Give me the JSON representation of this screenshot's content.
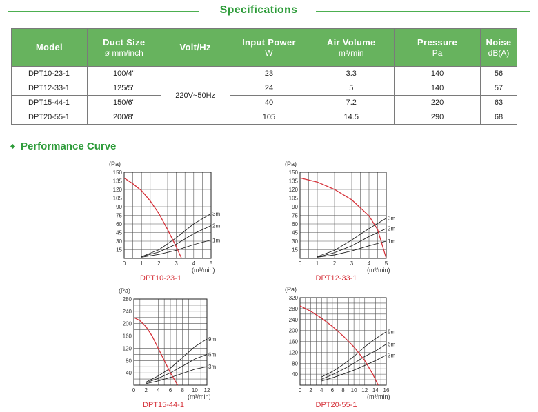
{
  "header": {
    "title": "Specifications"
  },
  "table": {
    "headers": [
      {
        "line1": "Model",
        "line2": ""
      },
      {
        "line1": "Duct Size",
        "line2": "ø mm/inch"
      },
      {
        "line1": "Volt/Hz",
        "line2": ""
      },
      {
        "line1": "Input Power",
        "line2": "W"
      },
      {
        "line1": "Air Volume",
        "line2": "m³/min"
      },
      {
        "line1": "Pressure",
        "line2": "Pa"
      },
      {
        "line1": "Noise",
        "line2": "dB(A)"
      }
    ],
    "volt": "220V~50Hz",
    "rows": [
      {
        "model": "DPT10-23-1",
        "duct": "100/4\"",
        "power": "23",
        "air": "3.3",
        "pressure": "140",
        "noise": "56"
      },
      {
        "model": "DPT12-33-1",
        "duct": "125/5\"",
        "power": "24",
        "air": "5",
        "pressure": "140",
        "noise": "57"
      },
      {
        "model": "DPT15-44-1",
        "duct": "150/6\"",
        "power": "40",
        "air": "7.2",
        "pressure": "220",
        "noise": "63"
      },
      {
        "model": "DPT20-55-1",
        "duct": "200/8\"",
        "power": "105",
        "air": "14.5",
        "pressure": "290",
        "noise": "68"
      }
    ]
  },
  "performance": {
    "title": "Performance Curve"
  },
  "chart_data": [
    {
      "type": "line",
      "title": "DPT10-23-1",
      "ylabel": "(Pa)",
      "xlabel": "(m³/min)",
      "xlim": [
        0,
        5
      ],
      "ylim": [
        0,
        150
      ],
      "xticks": [
        "0",
        "1",
        "2",
        "3",
        "4",
        "5"
      ],
      "yticks": [
        "15",
        "30",
        "45",
        "60",
        "75",
        "90",
        "105",
        "120",
        "135",
        "150"
      ],
      "fan_curve": [
        [
          0,
          140
        ],
        [
          0.5,
          130
        ],
        [
          1,
          118
        ],
        [
          1.5,
          100
        ],
        [
          2,
          78
        ],
        [
          2.5,
          50
        ],
        [
          3,
          20
        ],
        [
          3.3,
          0
        ]
      ],
      "duct_curves": [
        {
          "name": "3m",
          "points": [
            [
              1,
              3
            ],
            [
              2,
              15
            ],
            [
              3,
              36
            ],
            [
              4,
              60
            ],
            [
              5,
              78
            ]
          ]
        },
        {
          "name": "2m",
          "points": [
            [
              1,
              3
            ],
            [
              2,
              11
            ],
            [
              3,
              25
            ],
            [
              4,
              43
            ],
            [
              5,
              57
            ]
          ]
        },
        {
          "name": "1m",
          "points": [
            [
              1,
              2
            ],
            [
              2,
              7
            ],
            [
              3,
              14
            ],
            [
              4,
              24
            ],
            [
              5,
              32
            ]
          ]
        }
      ]
    },
    {
      "type": "line",
      "title": "DPT12-33-1",
      "ylabel": "(Pa)",
      "xlabel": "(m³/min)",
      "xlim": [
        0,
        5
      ],
      "ylim": [
        0,
        150
      ],
      "xticks": [
        "0",
        "1",
        "2",
        "3",
        "4",
        "5"
      ],
      "yticks": [
        "15",
        "30",
        "45",
        "60",
        "75",
        "90",
        "105",
        "120",
        "135",
        "150"
      ],
      "fan_curve": [
        [
          0,
          140
        ],
        [
          1,
          133
        ],
        [
          2,
          120
        ],
        [
          3,
          102
        ],
        [
          4,
          74
        ],
        [
          4.5,
          50
        ],
        [
          5,
          0
        ]
      ],
      "duct_curves": [
        {
          "name": "3m",
          "points": [
            [
              1,
              3
            ],
            [
              2,
              14
            ],
            [
              3,
              32
            ],
            [
              4,
              52
            ],
            [
              5,
              70
            ]
          ]
        },
        {
          "name": "2m",
          "points": [
            [
              1,
              2
            ],
            [
              2,
              10
            ],
            [
              3,
              22
            ],
            [
              4,
              38
            ],
            [
              5,
              52
            ]
          ]
        },
        {
          "name": "1m",
          "points": [
            [
              1,
              2
            ],
            [
              2,
              6
            ],
            [
              3,
              13
            ],
            [
              4,
              22
            ],
            [
              5,
              30
            ]
          ]
        }
      ]
    },
    {
      "type": "line",
      "title": "DPT15-44-1",
      "ylabel": "(Pa)",
      "xlabel": "(m³/min)",
      "xlim": [
        0,
        12
      ],
      "ylim": [
        0,
        280
      ],
      "xticks": [
        "0",
        "2",
        "4",
        "6",
        "8",
        "10",
        "12"
      ],
      "yticks": [
        "40",
        "80",
        "120",
        "160",
        "200",
        "240",
        "280"
      ],
      "fan_curve": [
        [
          0,
          220
        ],
        [
          1,
          210
        ],
        [
          2,
          190
        ],
        [
          3,
          160
        ],
        [
          4,
          120
        ],
        [
          5,
          80
        ],
        [
          6,
          40
        ],
        [
          7.2,
          0
        ]
      ],
      "duct_curves": [
        {
          "name": "9m",
          "points": [
            [
              2,
              10
            ],
            [
              4,
              30
            ],
            [
              6,
              55
            ],
            [
              8,
              90
            ],
            [
              10,
              125
            ],
            [
              12,
              150
            ]
          ]
        },
        {
          "name": "6m",
          "points": [
            [
              2,
              8
            ],
            [
              4,
              22
            ],
            [
              6,
              40
            ],
            [
              8,
              62
            ],
            [
              10,
              85
            ],
            [
              12,
              100
            ]
          ]
        },
        {
          "name": "3m",
          "points": [
            [
              2,
              5
            ],
            [
              4,
              14
            ],
            [
              6,
              25
            ],
            [
              8,
              38
            ],
            [
              10,
              52
            ],
            [
              12,
              60
            ]
          ]
        }
      ]
    },
    {
      "type": "line",
      "title": "DPT20-55-1",
      "ylabel": "(Pa)",
      "xlabel": "(m³/min)",
      "xlim": [
        0,
        16
      ],
      "ylim": [
        0,
        320
      ],
      "xticks": [
        "0",
        "2",
        "4",
        "6",
        "8",
        "10",
        "12",
        "14",
        "16"
      ],
      "yticks": [
        "40",
        "80",
        "120",
        "160",
        "200",
        "240",
        "280",
        "320"
      ],
      "fan_curve": [
        [
          0,
          290
        ],
        [
          2,
          270
        ],
        [
          4,
          245
        ],
        [
          6,
          215
        ],
        [
          8,
          180
        ],
        [
          10,
          140
        ],
        [
          12,
          90
        ],
        [
          13.5,
          40
        ],
        [
          14.5,
          0
        ]
      ],
      "duct_curves": [
        {
          "name": "9m",
          "points": [
            [
              4,
              30
            ],
            [
              6,
              50
            ],
            [
              8,
              75
            ],
            [
              10,
              105
            ],
            [
              12,
              140
            ],
            [
              14,
              170
            ],
            [
              16,
              195
            ]
          ]
        },
        {
          "name": "6m",
          "points": [
            [
              4,
              22
            ],
            [
              6,
              38
            ],
            [
              8,
              58
            ],
            [
              10,
              80
            ],
            [
              12,
              105
            ],
            [
              14,
              125
            ],
            [
              16,
              150
            ]
          ]
        },
        {
          "name": "3m",
          "points": [
            [
              4,
              15
            ],
            [
              6,
              27
            ],
            [
              8,
              40
            ],
            [
              10,
              55
            ],
            [
              12,
              72
            ],
            [
              14,
              90
            ],
            [
              16,
              110
            ]
          ]
        }
      ]
    }
  ]
}
